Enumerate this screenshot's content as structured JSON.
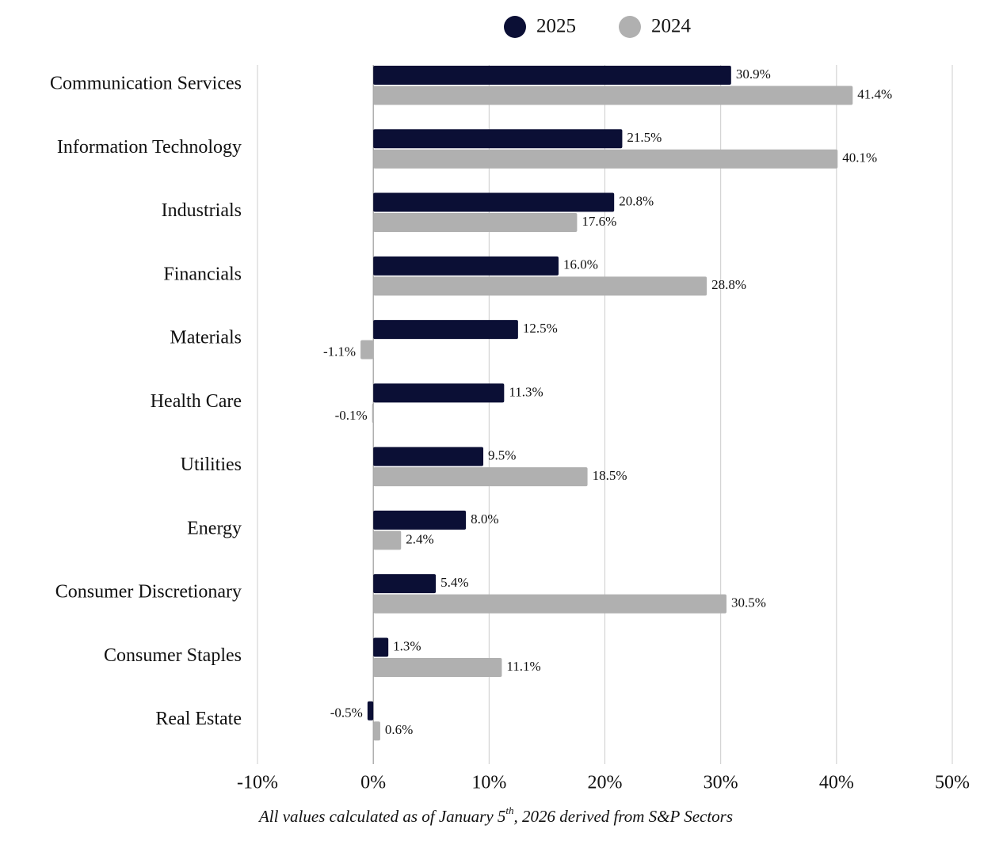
{
  "chart_data": {
    "type": "hbar",
    "legend": "top",
    "grid": true,
    "categories": [
      "Communication Services",
      "Information Technology",
      "Industrials",
      "Financials",
      "Materials",
      "Health Care",
      "Utilities",
      "Energy",
      "Consumer Discretionary",
      "Consumer Staples",
      "Real Estate"
    ],
    "series": [
      {
        "name": "2025",
        "color": "#0b0f35",
        "values": [
          30.9,
          21.5,
          20.8,
          16.0,
          12.5,
          11.3,
          9.5,
          8.0,
          5.4,
          1.3,
          -0.5
        ],
        "value_labels": [
          "30.9%",
          "21.5%",
          "20.8%",
          "16.0%",
          "12.5%",
          "11.3%",
          "9.5%",
          "8.0%",
          "5.4%",
          "1.3%",
          "-0.5%"
        ]
      },
      {
        "name": "2024",
        "color": "#b0b0b0",
        "values": [
          41.4,
          40.1,
          17.6,
          28.8,
          -1.1,
          -0.1,
          18.5,
          2.4,
          30.5,
          11.1,
          0.6
        ],
        "value_labels": [
          "41.4%",
          "40.1%",
          "17.6%",
          "28.8%",
          "-1.1%",
          "-0.1%",
          "18.5%",
          "2.4%",
          "30.5%",
          "11.1%",
          "0.6%"
        ]
      }
    ],
    "xlim": [
      -10,
      50
    ],
    "xticks": [
      {
        "value": -10,
        "label": "-10%"
      },
      {
        "value": 0,
        "label": "0%"
      },
      {
        "value": 10,
        "label": "10%"
      },
      {
        "value": 20,
        "label": "20%"
      },
      {
        "value": 30,
        "label": "30%"
      },
      {
        "value": 40,
        "label": "40%"
      },
      {
        "value": 50,
        "label": "50%"
      }
    ],
    "footnote": [
      "All values calculated as of January 5",
      "th",
      ", 2026 derived from S&P Sectors"
    ]
  }
}
